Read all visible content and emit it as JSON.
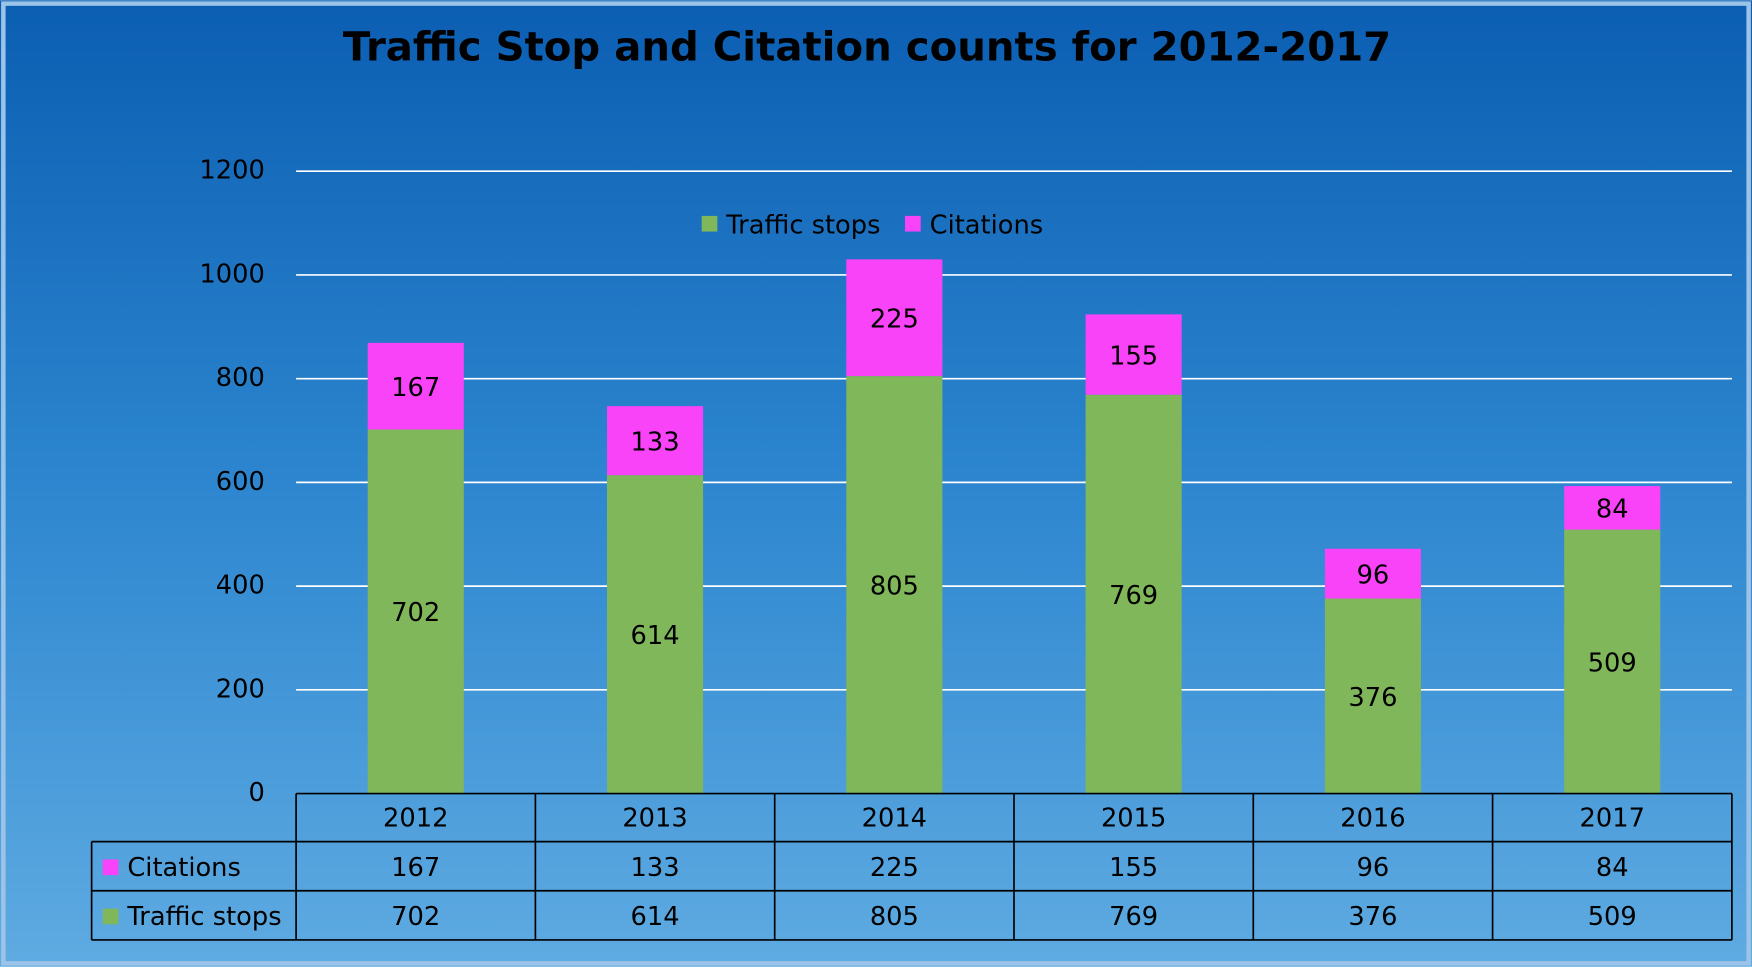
{
  "chart_data": {
    "type": "bar",
    "stacked": true,
    "title": "Traffic Stop and Citation counts for 2012-2017",
    "categories": [
      "2012",
      "2013",
      "2014",
      "2015",
      "2016",
      "2017"
    ],
    "series": [
      {
        "name": "Traffic stops",
        "color": "#80b75a",
        "values": [
          702,
          614,
          805,
          769,
          376,
          509
        ]
      },
      {
        "name": "Citations",
        "color": "#f943f9",
        "values": [
          167,
          133,
          225,
          155,
          96,
          84
        ]
      }
    ],
    "ylim": [
      0,
      1200
    ],
    "yticks": [
      0,
      200,
      400,
      600,
      800,
      1000,
      1200
    ],
    "grid": true,
    "legend": "top",
    "data_table": true
  }
}
